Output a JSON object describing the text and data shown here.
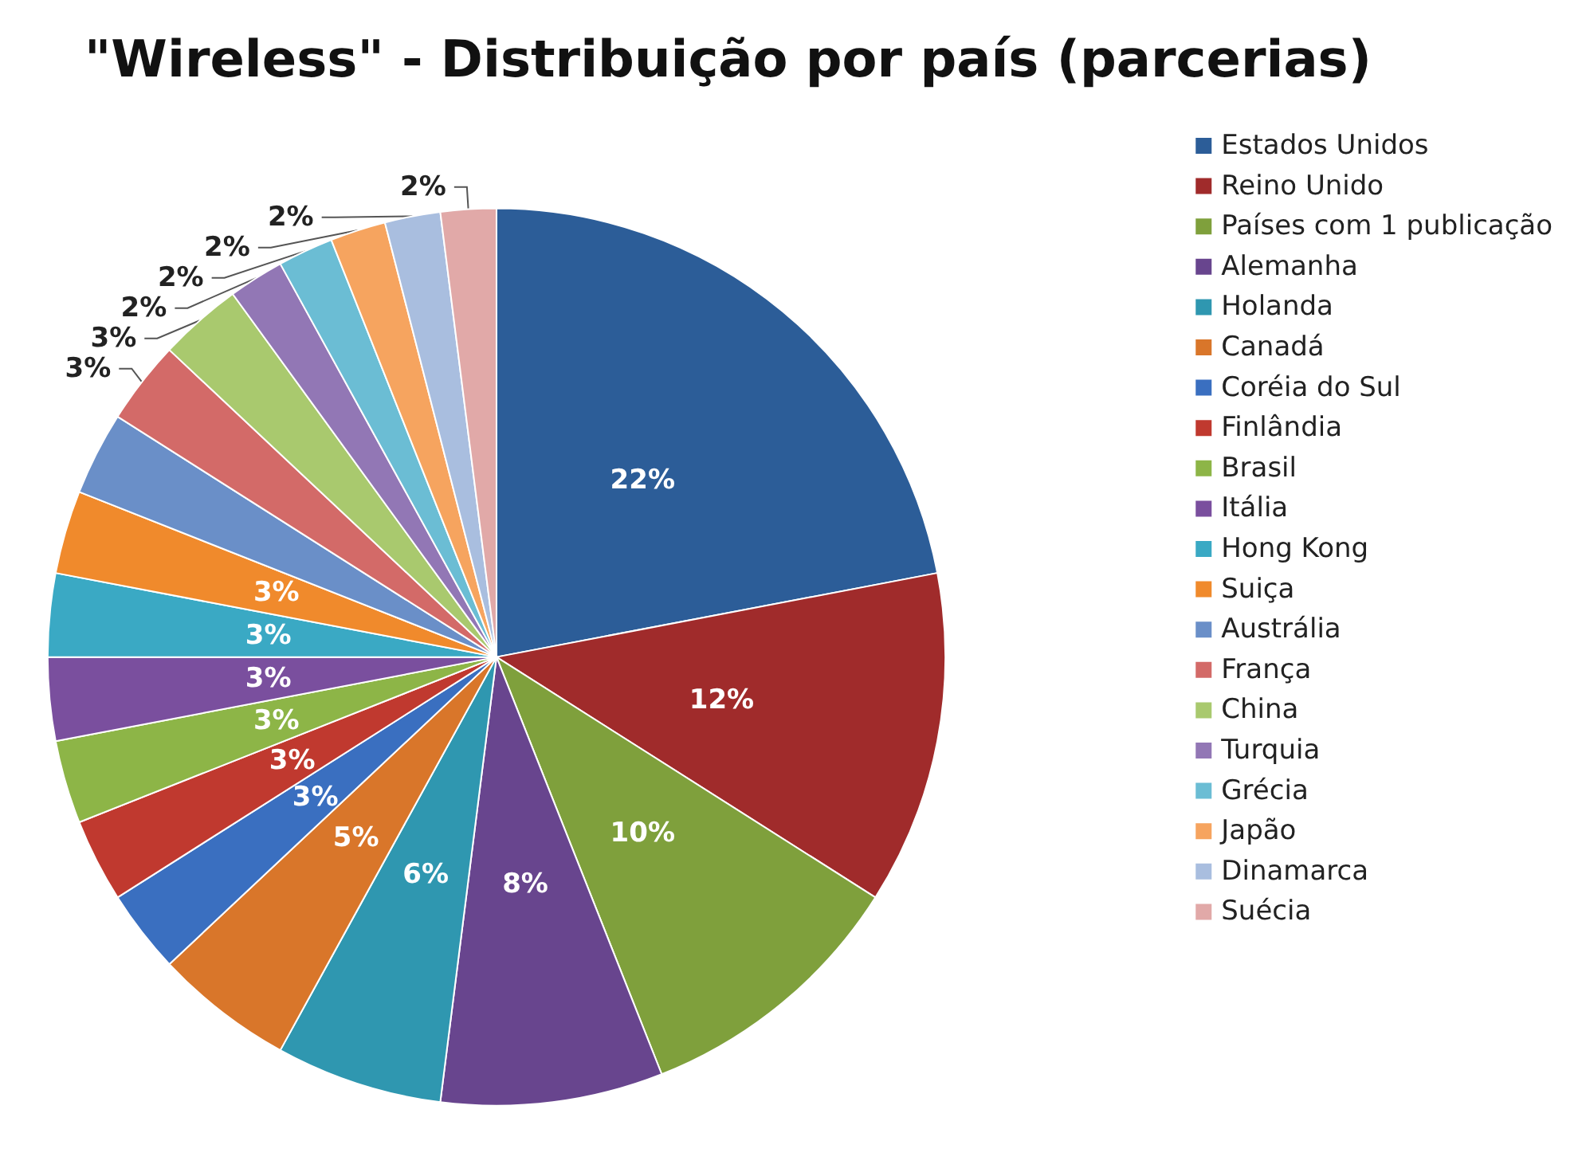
{
  "chart_data": {
    "type": "pie",
    "title": "\"Wireless\" - Distribuição por país (parcerias)",
    "legend": "right",
    "categories": [
      "Estados Unidos",
      "Reino Unido",
      "Países com 1 publicação",
      "Alemanha",
      "Holanda",
      "Canadá",
      "Coréia do Sul",
      "Finlândia",
      "Brasil",
      "Itália",
      "Hong Kong",
      "Suiça",
      "Austrália",
      "França",
      "China",
      "Turquia",
      "Grécia",
      "Japão",
      "Dinamarca",
      "Suécia"
    ],
    "values": [
      22,
      12,
      10,
      8,
      6,
      5,
      3,
      3,
      3,
      3,
      3,
      3,
      3,
      3,
      3,
      2,
      2,
      2,
      2,
      2
    ],
    "value_labels": [
      "22%",
      "12%",
      "10%",
      "8%",
      "6%",
      "5%",
      "3%",
      "3%",
      "3%",
      "3%",
      "3%",
      "3%",
      null,
      "3%",
      "3%",
      "2%",
      "2%",
      "2%",
      "2%",
      "2%"
    ],
    "colors": [
      "#2c5d98",
      "#a02b2b",
      "#7fa03c",
      "#68458e",
      "#2f97b0",
      "#d9762a",
      "#3a6fc0",
      "#c0392f",
      "#8db547",
      "#7a4f9e",
      "#3aa9c4",
      "#f08a2c",
      "#6a8fc8",
      "#d36a68",
      "#a9c96e",
      "#9277b5",
      "#6bbdd4",
      "#f6a45f",
      "#a9bedf",
      "#e1a9a8"
    ]
  }
}
